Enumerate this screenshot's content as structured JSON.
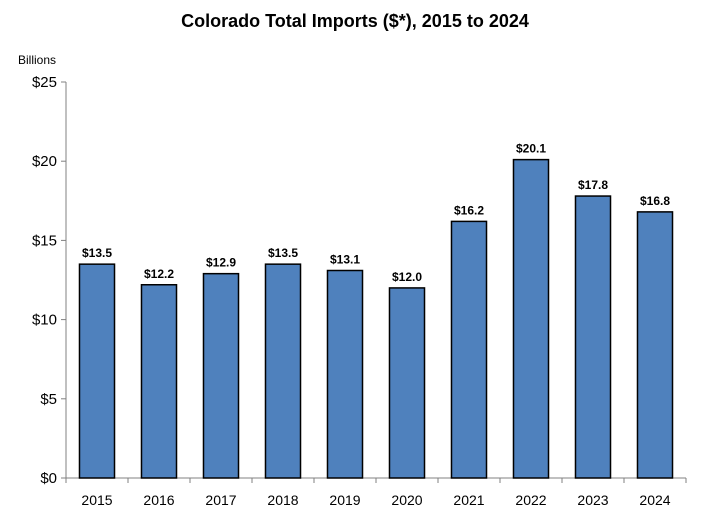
{
  "chart_data": {
    "type": "bar",
    "title": "Colorado Total Imports ($*), 2015 to 2024",
    "ylabel": "Billions",
    "xlabel": "",
    "categories": [
      "2015",
      "2016",
      "2017",
      "2018",
      "2019",
      "2020",
      "2021",
      "2022",
      "2023",
      "2024"
    ],
    "values": [
      13.5,
      12.2,
      12.9,
      13.5,
      13.1,
      12.0,
      16.2,
      20.1,
      17.8,
      16.8
    ],
    "data_labels": [
      "$13.5",
      "$12.2",
      "$12.9",
      "$13.5",
      "$13.1",
      "$12.0",
      "$16.2",
      "$20.1",
      "$17.8",
      "$16.8"
    ],
    "ylim": [
      0,
      25
    ],
    "yticks": [
      0,
      5,
      10,
      15,
      20,
      25
    ],
    "ytick_labels": [
      "$0",
      "$5",
      "$10",
      "$15",
      "$20",
      "$25"
    ],
    "grid": false,
    "legend": "none",
    "colors": {
      "bar_fill": "#4f81bd",
      "bar_stroke": "#000000",
      "axis": "#808080"
    }
  }
}
